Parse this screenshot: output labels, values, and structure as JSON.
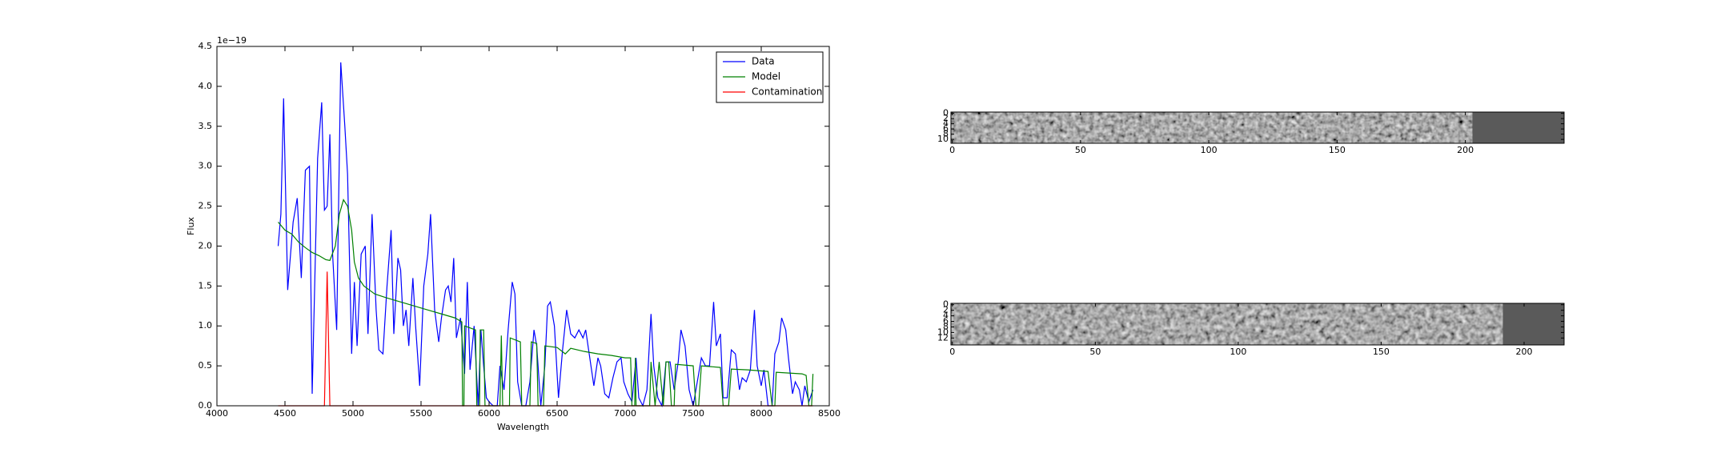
{
  "chart_data": [
    {
      "type": "line",
      "offset_text": "1e−19",
      "xlabel": "Wavelength",
      "ylabel": "Flux",
      "xlim": [
        4000,
        8500
      ],
      "ylim": [
        0,
        4.5
      ],
      "xticks": [
        4000,
        4500,
        5000,
        5500,
        6000,
        6500,
        7000,
        7500,
        8000,
        8500
      ],
      "yticks": [
        {
          "value": 0,
          "label": "0.0"
        },
        0.5,
        {
          "value": 1,
          "label": "1.0"
        },
        1.5,
        {
          "value": 2,
          "label": "2.0"
        },
        2.5,
        {
          "value": 3,
          "label": "3.0"
        },
        3.5,
        {
          "value": 4,
          "label": "4.0"
        },
        4.5
      ],
      "legend": "upper right",
      "series": [
        {
          "name": "Data",
          "color": "#0000ff",
          "x": [
            4450,
            4470,
            4490,
            4520,
            4560,
            4590,
            4620,
            4650,
            4680,
            4700,
            4740,
            4770,
            4790,
            4810,
            4830,
            4850,
            4880,
            4910,
            4940,
            4960,
            4990,
            5010,
            5030,
            5060,
            5090,
            5110,
            5140,
            5170,
            5190,
            5220,
            5250,
            5280,
            5300,
            5330,
            5350,
            5370,
            5390,
            5410,
            5440,
            5460,
            5490,
            5520,
            5550,
            5570,
            5600,
            5630,
            5650,
            5680,
            5700,
            5720,
            5740,
            5760,
            5790,
            5820,
            5840,
            5860,
            5890,
            5920,
            5940,
            5960,
            5980,
            6000,
            6030,
            6060,
            6080,
            6110,
            6140,
            6170,
            6190,
            6210,
            6240,
            6270,
            6300,
            6330,
            6350,
            6380,
            6410,
            6430,
            6450,
            6480,
            6510,
            6540,
            6570,
            6600,
            6630,
            6660,
            6690,
            6710,
            6740,
            6770,
            6800,
            6820,
            6850,
            6880,
            6910,
            6940,
            6970,
            6990,
            7020,
            7050,
            7080,
            7100,
            7130,
            7160,
            7190,
            7210,
            7240,
            7270,
            7300,
            7330,
            7360,
            7390,
            7410,
            7440,
            7470,
            7500,
            7530,
            7560,
            7590,
            7620,
            7650,
            7670,
            7700,
            7720,
            7750,
            7780,
            7810,
            7840,
            7860,
            7890,
            7920,
            7950,
            7970,
            8000,
            8020,
            8050,
            8080,
            8100,
            8130,
            8150,
            8180,
            8200,
            8230,
            8250,
            8280,
            8300,
            8320,
            8350,
            8380
          ],
          "values": [
            2.0,
            2.4,
            3.85,
            1.45,
            2.3,
            2.6,
            1.6,
            2.95,
            3.0,
            0.15,
            3.1,
            3.8,
            2.45,
            2.5,
            3.4,
            1.9,
            0.95,
            4.3,
            3.5,
            2.9,
            0.65,
            1.55,
            0.75,
            1.9,
            2.0,
            0.9,
            2.4,
            1.2,
            0.7,
            0.65,
            1.5,
            2.2,
            0.9,
            1.85,
            1.7,
            1.0,
            1.2,
            0.75,
            1.6,
            1.0,
            0.25,
            1.5,
            1.9,
            2.4,
            1.2,
            0.8,
            1.1,
            1.45,
            1.5,
            1.3,
            1.85,
            0.85,
            1.1,
            0.4,
            1.55,
            0.45,
            1.0,
            0.0,
            0.95,
            0.5,
            0.1,
            0.05,
            0.0,
            0.0,
            0.5,
            0.2,
            0.95,
            1.55,
            1.4,
            0.3,
            0.0,
            0.0,
            0.3,
            0.95,
            0.75,
            0.0,
            0.5,
            1.25,
            1.3,
            1.0,
            0.1,
            0.7,
            1.2,
            0.9,
            0.85,
            0.95,
            0.85,
            0.95,
            0.6,
            0.25,
            0.6,
            0.5,
            0.15,
            0.1,
            0.35,
            0.55,
            0.6,
            0.3,
            0.15,
            0.05,
            0.6,
            0.1,
            0.0,
            0.2,
            1.15,
            0.5,
            0.1,
            0.0,
            0.55,
            0.55,
            0.2,
            0.55,
            0.95,
            0.75,
            0.2,
            0.0,
            0.3,
            0.6,
            0.5,
            0.5,
            1.3,
            0.75,
            0.9,
            0.1,
            0.1,
            0.7,
            0.65,
            0.2,
            0.35,
            0.3,
            0.45,
            1.2,
            0.5,
            0.25,
            0.45,
            0.0,
            0.0,
            0.65,
            0.8,
            1.1,
            0.95,
            0.6,
            0.15,
            0.3,
            0.2,
            0.0,
            0.25,
            0.05,
            0.2
          ]
        },
        {
          "name": "Model",
          "color": "#008000",
          "x": [
            4450,
            4500,
            4550,
            4600,
            4650,
            4700,
            4750,
            4800,
            4830,
            4870,
            4900,
            4930,
            4960,
            4990,
            5010,
            5040,
            5080,
            5120,
            5160,
            5250,
            5350,
            5450,
            5550,
            5650,
            5750,
            5800,
            5805,
            5815,
            5820,
            5900,
            5910,
            5930,
            5935,
            5960,
            5970,
            6080,
            6090,
            6100,
            6150,
            6155,
            6230,
            6240,
            6300,
            6310,
            6350,
            6360,
            6400,
            6410,
            6500,
            6560,
            6600,
            6700,
            6800,
            6900,
            7000,
            7040,
            7050,
            7070,
            7075,
            7080,
            7180,
            7190,
            7220,
            7250,
            7280,
            7300,
            7320,
            7340,
            7360,
            7370,
            7500,
            7520,
            7540,
            7560,
            7700,
            7720,
            7760,
            7780,
            7900,
            8050,
            8080,
            8100,
            8110,
            8300,
            8330,
            8350,
            8370,
            8380
          ],
          "values": [
            2.3,
            2.2,
            2.15,
            2.05,
            1.98,
            1.92,
            1.88,
            1.83,
            1.82,
            2.0,
            2.4,
            2.58,
            2.5,
            2.2,
            1.8,
            1.6,
            1.5,
            1.45,
            1.4,
            1.35,
            1.3,
            1.25,
            1.2,
            1.15,
            1.1,
            1.05,
            0,
            0,
            1.0,
            0.95,
            0,
            0,
            0.95,
            0.95,
            0,
            0,
            0.88,
            0,
            0,
            0.85,
            0.8,
            0,
            0,
            0.8,
            0.78,
            0,
            0,
            0.75,
            0.73,
            0.65,
            0.72,
            0.68,
            0.65,
            0.63,
            0.6,
            0.6,
            0,
            0,
            0.6,
            0,
            0,
            0.55,
            0,
            0.55,
            0,
            0.55,
            0.55,
            0,
            0,
            0.52,
            0.5,
            0,
            0,
            0.5,
            0.48,
            0,
            0,
            0.46,
            0.45,
            0.43,
            0,
            0,
            0.42,
            0.4,
            0.38,
            0,
            0,
            0.4
          ]
        },
        {
          "name": "Contamination",
          "color": "#ff0000",
          "x": [
            4450,
            4790,
            4810,
            4830,
            8380
          ],
          "values": [
            0,
            0,
            1.68,
            0,
            0
          ]
        }
      ]
    },
    {
      "type": "image",
      "xlim": [
        -0.5,
        238.5
      ],
      "ylim": [
        -0.5,
        11.5
      ],
      "xticks": [
        0,
        50,
        100,
        150,
        200
      ],
      "yticks": [
        0,
        2,
        4,
        6,
        8,
        10
      ]
    },
    {
      "type": "image",
      "xlim": [
        -0.5,
        214
      ],
      "ylim": [
        -0.5,
        14.5
      ],
      "xticks": [
        0,
        50,
        100,
        150,
        200
      ],
      "yticks": [
        0,
        2,
        4,
        6,
        8,
        10,
        12
      ]
    }
  ]
}
